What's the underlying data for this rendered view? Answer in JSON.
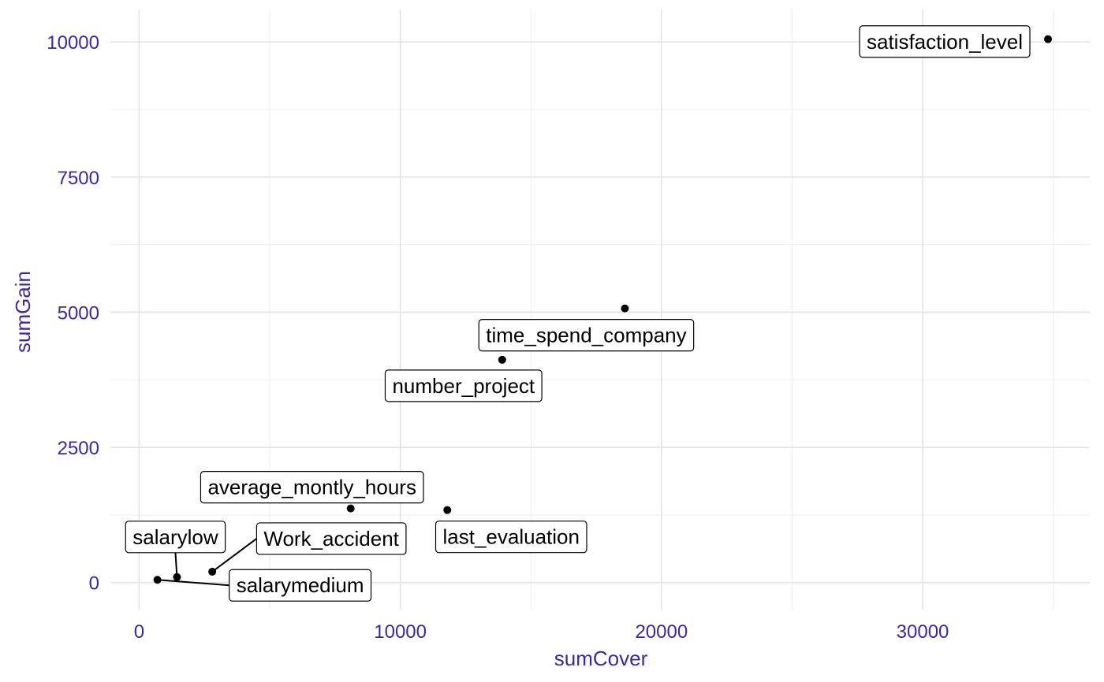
{
  "chart_data": {
    "type": "scatter",
    "xlabel": "sumCover",
    "ylabel": "sumGain",
    "xlim": [
      -1100,
      36400
    ],
    "ylim": [
      -500,
      10600
    ],
    "x_ticks": [
      0,
      10000,
      20000,
      30000
    ],
    "y_ticks": [
      0,
      2500,
      5000,
      7500,
      10000
    ],
    "grid": true,
    "colors": {
      "axis_text": "#3a2a9a",
      "points": "#000000",
      "grid": "#e3e3e3"
    },
    "points": [
      {
        "label": "satisfaction_level",
        "x": 34800,
        "y": 10050
      },
      {
        "label": "time_spend_company",
        "x": 18600,
        "y": 5070
      },
      {
        "label": "number_project",
        "x": 13900,
        "y": 4120
      },
      {
        "label": "average_montly_hours",
        "x": 8100,
        "y": 1370
      },
      {
        "label": "last_evaluation",
        "x": 11800,
        "y": 1340
      },
      {
        "label": "Work_accident",
        "x": 2800,
        "y": 200
      },
      {
        "label": "salarylow",
        "x": 1450,
        "y": 100
      },
      {
        "label": "salarymedium",
        "x": 700,
        "y": 50
      }
    ]
  }
}
